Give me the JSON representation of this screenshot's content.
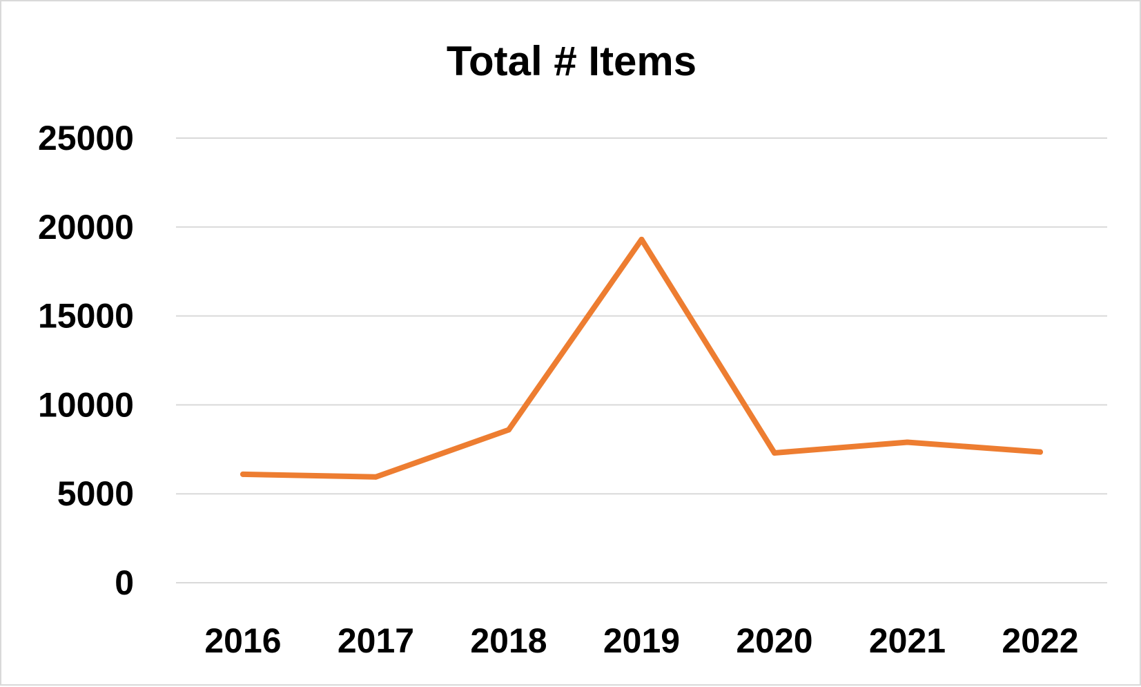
{
  "chart_data": {
    "type": "line",
    "title": "Total # Items",
    "xlabel": "",
    "ylabel": "",
    "categories": [
      "2016",
      "2017",
      "2018",
      "2019",
      "2020",
      "2021",
      "2022"
    ],
    "series": [
      {
        "values": [
          6100,
          5950,
          8600,
          19300,
          7300,
          7900,
          7350
        ],
        "color": "#ed7d31"
      }
    ],
    "ylim": [
      0,
      25000
    ],
    "yticks": [
      0,
      5000,
      10000,
      15000,
      20000,
      25000
    ],
    "ytick_labels": [
      "0",
      "5000",
      "10000",
      "15000",
      "20000",
      "25000"
    ],
    "grid": true,
    "legend": "none"
  }
}
